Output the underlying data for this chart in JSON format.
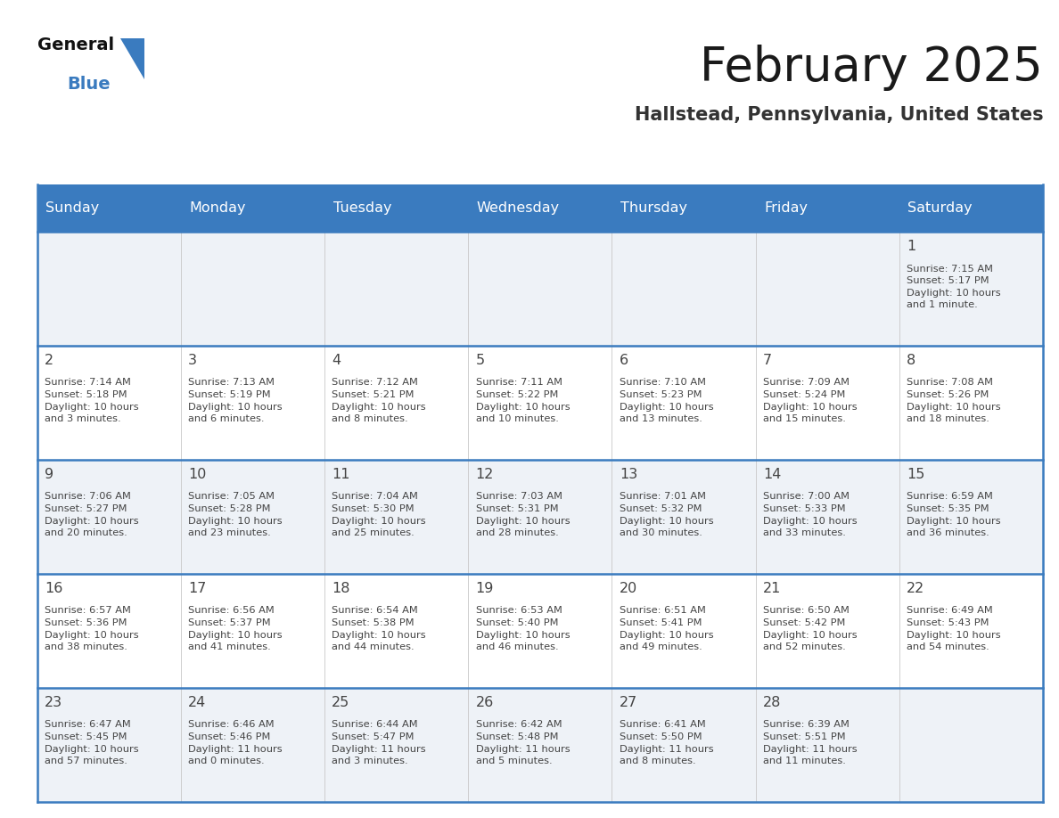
{
  "title": "February 2025",
  "subtitle": "Hallstead, Pennsylvania, United States",
  "header_bg": "#3a7bbf",
  "header_text": "#ffffff",
  "cell_bg_odd": "#eef2f7",
  "cell_bg_even": "#ffffff",
  "border_color": "#3a7bbf",
  "text_color": "#444444",
  "days_of_week": [
    "Sunday",
    "Monday",
    "Tuesday",
    "Wednesday",
    "Thursday",
    "Friday",
    "Saturday"
  ],
  "weeks": [
    [
      {
        "day": "",
        "info": ""
      },
      {
        "day": "",
        "info": ""
      },
      {
        "day": "",
        "info": ""
      },
      {
        "day": "",
        "info": ""
      },
      {
        "day": "",
        "info": ""
      },
      {
        "day": "",
        "info": ""
      },
      {
        "day": "1",
        "info": "Sunrise: 7:15 AM\nSunset: 5:17 PM\nDaylight: 10 hours\nand 1 minute."
      }
    ],
    [
      {
        "day": "2",
        "info": "Sunrise: 7:14 AM\nSunset: 5:18 PM\nDaylight: 10 hours\nand 3 minutes."
      },
      {
        "day": "3",
        "info": "Sunrise: 7:13 AM\nSunset: 5:19 PM\nDaylight: 10 hours\nand 6 minutes."
      },
      {
        "day": "4",
        "info": "Sunrise: 7:12 AM\nSunset: 5:21 PM\nDaylight: 10 hours\nand 8 minutes."
      },
      {
        "day": "5",
        "info": "Sunrise: 7:11 AM\nSunset: 5:22 PM\nDaylight: 10 hours\nand 10 minutes."
      },
      {
        "day": "6",
        "info": "Sunrise: 7:10 AM\nSunset: 5:23 PM\nDaylight: 10 hours\nand 13 minutes."
      },
      {
        "day": "7",
        "info": "Sunrise: 7:09 AM\nSunset: 5:24 PM\nDaylight: 10 hours\nand 15 minutes."
      },
      {
        "day": "8",
        "info": "Sunrise: 7:08 AM\nSunset: 5:26 PM\nDaylight: 10 hours\nand 18 minutes."
      }
    ],
    [
      {
        "day": "9",
        "info": "Sunrise: 7:06 AM\nSunset: 5:27 PM\nDaylight: 10 hours\nand 20 minutes."
      },
      {
        "day": "10",
        "info": "Sunrise: 7:05 AM\nSunset: 5:28 PM\nDaylight: 10 hours\nand 23 minutes."
      },
      {
        "day": "11",
        "info": "Sunrise: 7:04 AM\nSunset: 5:30 PM\nDaylight: 10 hours\nand 25 minutes."
      },
      {
        "day": "12",
        "info": "Sunrise: 7:03 AM\nSunset: 5:31 PM\nDaylight: 10 hours\nand 28 minutes."
      },
      {
        "day": "13",
        "info": "Sunrise: 7:01 AM\nSunset: 5:32 PM\nDaylight: 10 hours\nand 30 minutes."
      },
      {
        "day": "14",
        "info": "Sunrise: 7:00 AM\nSunset: 5:33 PM\nDaylight: 10 hours\nand 33 minutes."
      },
      {
        "day": "15",
        "info": "Sunrise: 6:59 AM\nSunset: 5:35 PM\nDaylight: 10 hours\nand 36 minutes."
      }
    ],
    [
      {
        "day": "16",
        "info": "Sunrise: 6:57 AM\nSunset: 5:36 PM\nDaylight: 10 hours\nand 38 minutes."
      },
      {
        "day": "17",
        "info": "Sunrise: 6:56 AM\nSunset: 5:37 PM\nDaylight: 10 hours\nand 41 minutes."
      },
      {
        "day": "18",
        "info": "Sunrise: 6:54 AM\nSunset: 5:38 PM\nDaylight: 10 hours\nand 44 minutes."
      },
      {
        "day": "19",
        "info": "Sunrise: 6:53 AM\nSunset: 5:40 PM\nDaylight: 10 hours\nand 46 minutes."
      },
      {
        "day": "20",
        "info": "Sunrise: 6:51 AM\nSunset: 5:41 PM\nDaylight: 10 hours\nand 49 minutes."
      },
      {
        "day": "21",
        "info": "Sunrise: 6:50 AM\nSunset: 5:42 PM\nDaylight: 10 hours\nand 52 minutes."
      },
      {
        "day": "22",
        "info": "Sunrise: 6:49 AM\nSunset: 5:43 PM\nDaylight: 10 hours\nand 54 minutes."
      }
    ],
    [
      {
        "day": "23",
        "info": "Sunrise: 6:47 AM\nSunset: 5:45 PM\nDaylight: 10 hours\nand 57 minutes."
      },
      {
        "day": "24",
        "info": "Sunrise: 6:46 AM\nSunset: 5:46 PM\nDaylight: 11 hours\nand 0 minutes."
      },
      {
        "day": "25",
        "info": "Sunrise: 6:44 AM\nSunset: 5:47 PM\nDaylight: 11 hours\nand 3 minutes."
      },
      {
        "day": "26",
        "info": "Sunrise: 6:42 AM\nSunset: 5:48 PM\nDaylight: 11 hours\nand 5 minutes."
      },
      {
        "day": "27",
        "info": "Sunrise: 6:41 AM\nSunset: 5:50 PM\nDaylight: 11 hours\nand 8 minutes."
      },
      {
        "day": "28",
        "info": "Sunrise: 6:39 AM\nSunset: 5:51 PM\nDaylight: 11 hours\nand 11 minutes."
      },
      {
        "day": "",
        "info": ""
      }
    ]
  ]
}
